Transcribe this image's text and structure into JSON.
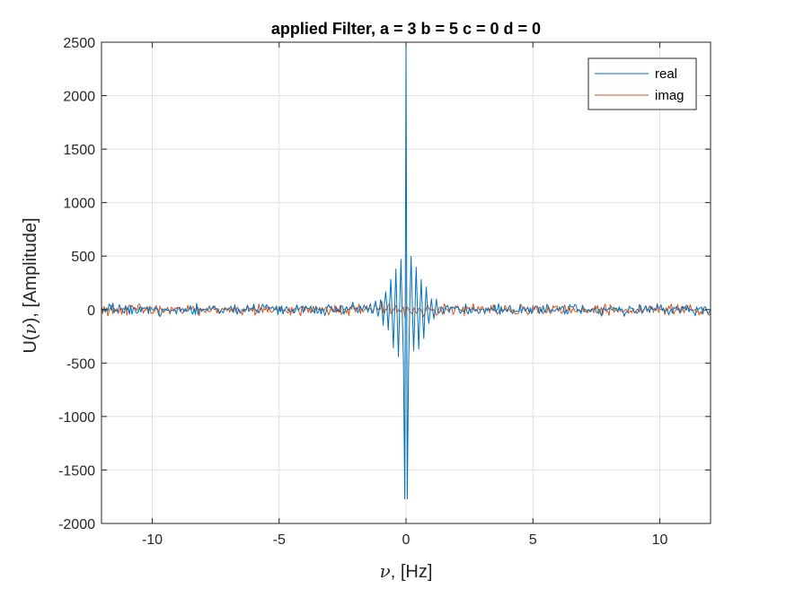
{
  "chart_data": {
    "type": "line",
    "title": "applied Filter, a = 3 b = 5 c = 0 d = 0",
    "xlabel_symbol": "ν",
    "xlabel_unit": ", [Hz]",
    "ylabel_prefix": "U(",
    "ylabel_symbol": "ν",
    "ylabel_suffix": "), [Amplitude]",
    "xlim": [
      -12,
      12
    ],
    "ylim": [
      -2000,
      2500
    ],
    "x_ticks": [
      -10,
      -5,
      0,
      5,
      10
    ],
    "x_tick_labels": [
      "-10",
      "-5",
      "0",
      "5",
      "10"
    ],
    "y_ticks": [
      -2000,
      -1500,
      -1000,
      -500,
      0,
      500,
      1000,
      1500,
      2000,
      2500
    ],
    "y_tick_labels": [
      "-2000",
      "-1500",
      "-1000",
      "-500",
      "0",
      "500",
      "1000",
      "1500",
      "2000",
      "2500"
    ],
    "grid": true,
    "legend_position": "top-right",
    "sample_step": 0.05,
    "series": [
      {
        "name": "real",
        "color": "#0072BD",
        "peak": {
          "x": 0,
          "y": 2480
        },
        "oscillation": {
          "main_lobe_width": 0.06,
          "sidelobe_period": 0.1,
          "envelope_decay_width": 0.8
        },
        "min_value": -1770,
        "noise_amplitude": 40
      },
      {
        "name": "imag",
        "color": "#D95319",
        "noise_amplitude": 40
      }
    ]
  }
}
